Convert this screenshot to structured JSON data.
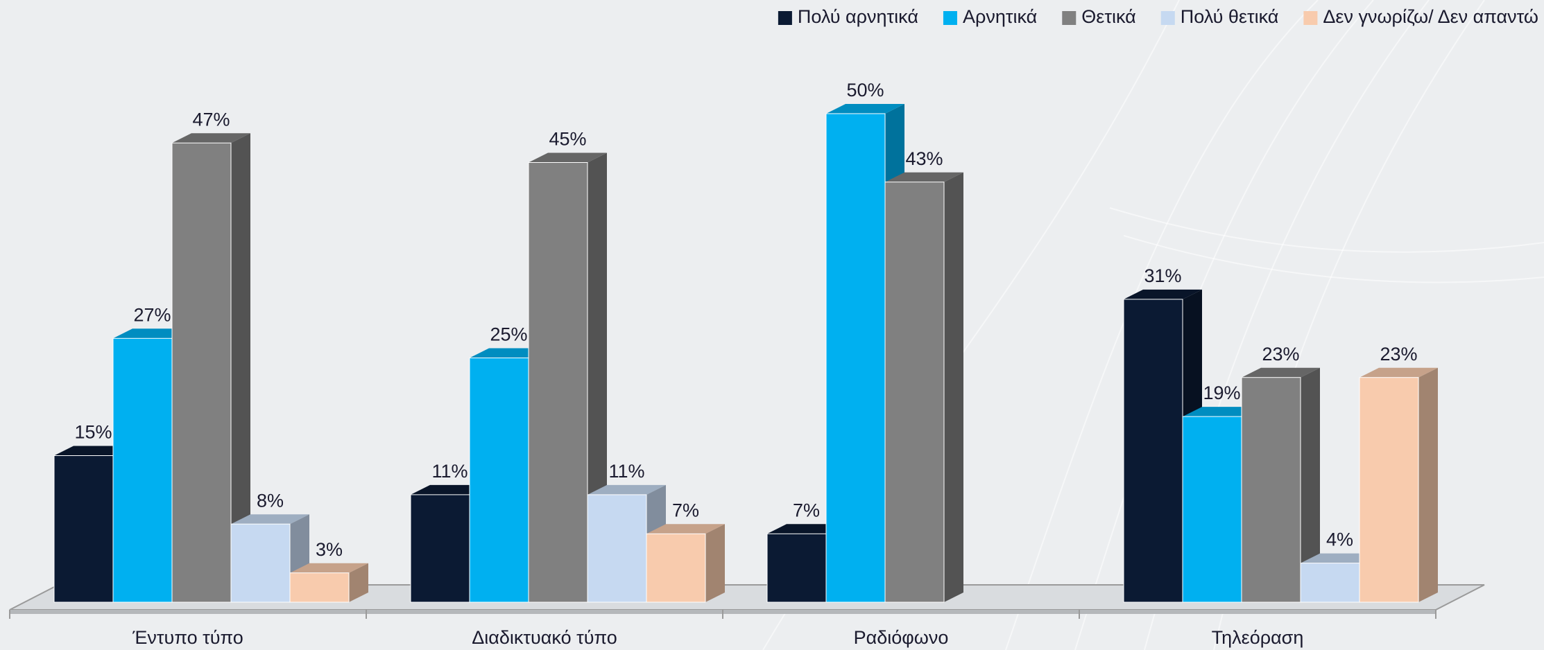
{
  "chart_data": {
    "type": "bar3d",
    "categories": [
      "Έντυπο τύπο",
      "Διαδικτυακό τύπο",
      "Ραδιόφωνο",
      "Τηλεόραση"
    ],
    "series": [
      {
        "name": "Πολύ αρνητικά",
        "color": "#0b1a33",
        "values": [
          15,
          11,
          7,
          31
        ],
        "value_labels": [
          "15%",
          "11%",
          "7%",
          "31%"
        ]
      },
      {
        "name": "Αρνητικά",
        "color": "#00b0f0",
        "values": [
          27,
          25,
          50,
          19
        ],
        "value_labels": [
          "27%",
          "25%",
          "50%",
          "19%"
        ]
      },
      {
        "name": "Θετικά",
        "color": "#808080",
        "values": [
          47,
          45,
          43,
          23
        ],
        "value_labels": [
          "47%",
          "45%",
          "43%",
          "23%"
        ]
      },
      {
        "name": "Πολύ θετικά",
        "color": "#c6d9f1",
        "values": [
          8,
          11,
          null,
          4
        ],
        "value_labels": [
          "8%",
          "11%",
          null,
          "4%"
        ]
      },
      {
        "name": "Δεν γνωρίζω/ Δεν απαντώ",
        "color": "#f8cbad",
        "values": [
          3,
          7,
          null,
          23
        ],
        "value_labels": [
          "3%",
          "7%",
          null,
          "23%"
        ]
      }
    ],
    "legend": "top-right"
  }
}
